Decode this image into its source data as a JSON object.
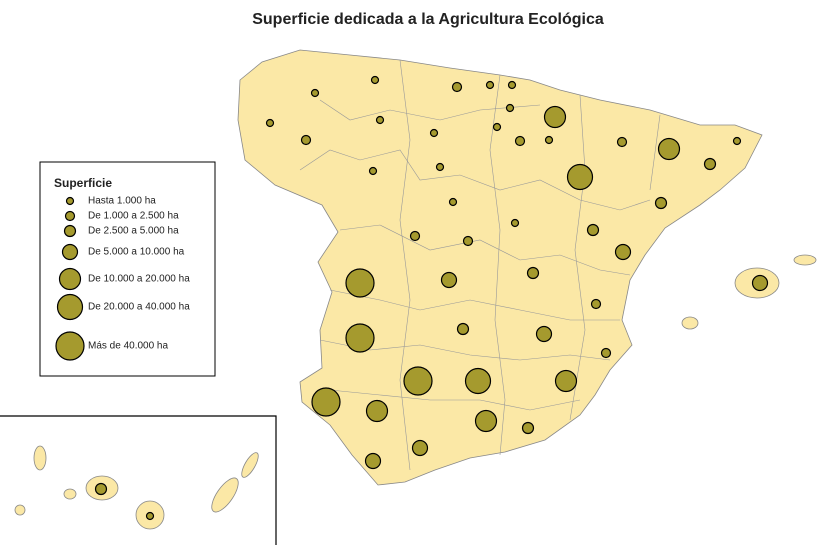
{
  "title": "Superficie dedicada a la Agricultura Ecológica",
  "legend": {
    "title": "Superficie",
    "entries": [
      "Hasta 1.000 ha",
      "De 1.000 a 2.500 ha",
      "De 2.500 a 5.000 ha",
      "De 5.000 a 10.000 ha",
      "De 10.000 a 20.000 ha",
      "De 20.000 a 40.000 ha",
      "Más de 40.000 ha"
    ]
  }
}
